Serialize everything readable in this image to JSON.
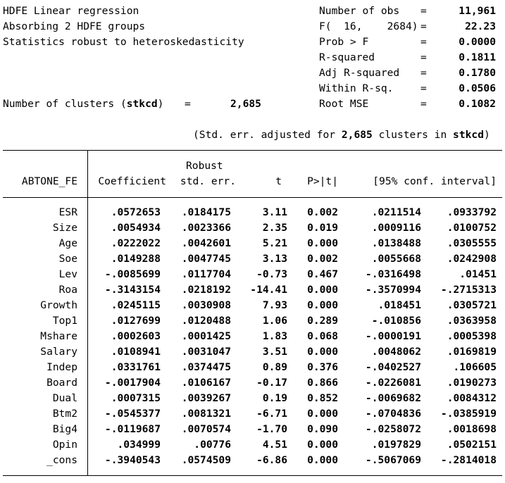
{
  "header": {
    "title": "HDFE Linear regression",
    "absorb": "Absorbing 2 HDFE groups",
    "robust": "Statistics robust to heteroskedasticity",
    "clusters_label_pre": "Number of clusters ",
    "cluster_var": "stkcd",
    "eq": "=",
    "clusters_value": "2,685"
  },
  "stats": [
    {
      "label": "Number of obs",
      "value": "11,961"
    },
    {
      "label": "F(  16,    2684)",
      "value": "22.23"
    },
    {
      "label": "Prob > F",
      "value": "0.0000"
    },
    {
      "label": "R-squared",
      "value": "0.1811"
    },
    {
      "label": "Adj R-squared",
      "value": "0.1780"
    },
    {
      "label": "Within R-sq.",
      "value": "0.0506"
    },
    {
      "label": "Root MSE",
      "value": "0.1082"
    }
  ],
  "note": {
    "pre": "(Std. err. adjusted for ",
    "count": "2,685",
    "mid": " clusters in ",
    "var": "stkcd",
    "post": ")"
  },
  "table": {
    "depvar": "ABTONE_FE",
    "headers": {
      "robust": "Robust",
      "coef": "Coefficient",
      "se": "std. err.",
      "t": "t",
      "p": "P>|t|",
      "ci": "[95% conf. interval]"
    },
    "rows": [
      {
        "var": "ESR",
        "coef": ".0572653",
        "se": ".0184175",
        "t": "3.11",
        "p": "0.002",
        "lo": ".0211514",
        "hi": ".0933792"
      },
      {
        "var": "Size",
        "coef": ".0054934",
        "se": ".0023366",
        "t": "2.35",
        "p": "0.019",
        "lo": ".0009116",
        "hi": ".0100752"
      },
      {
        "var": "Age",
        "coef": ".0222022",
        "se": ".0042601",
        "t": "5.21",
        "p": "0.000",
        "lo": ".0138488",
        "hi": ".0305555"
      },
      {
        "var": "Soe",
        "coef": ".0149288",
        "se": ".0047745",
        "t": "3.13",
        "p": "0.002",
        "lo": ".0055668",
        "hi": ".0242908"
      },
      {
        "var": "Lev",
        "coef": "-.0085699",
        "se": ".0117704",
        "t": "-0.73",
        "p": "0.467",
        "lo": "-.0316498",
        "hi": ".01451"
      },
      {
        "var": "Roa",
        "coef": "-.3143154",
        "se": ".0218192",
        "t": "-14.41",
        "p": "0.000",
        "lo": "-.3570994",
        "hi": "-.2715313"
      },
      {
        "var": "Growth",
        "coef": ".0245115",
        "se": ".0030908",
        "t": "7.93",
        "p": "0.000",
        "lo": ".018451",
        "hi": ".0305721"
      },
      {
        "var": "Top1",
        "coef": ".0127699",
        "se": ".0120488",
        "t": "1.06",
        "p": "0.289",
        "lo": "-.010856",
        "hi": ".0363958"
      },
      {
        "var": "Mshare",
        "coef": ".0002603",
        "se": ".0001425",
        "t": "1.83",
        "p": "0.068",
        "lo": "-.0000191",
        "hi": ".0005398"
      },
      {
        "var": "Salary",
        "coef": ".0108941",
        "se": ".0031047",
        "t": "3.51",
        "p": "0.000",
        "lo": ".0048062",
        "hi": ".0169819"
      },
      {
        "var": "Indep",
        "coef": ".0331761",
        "se": ".0374475",
        "t": "0.89",
        "p": "0.376",
        "lo": "-.0402527",
        "hi": ".106605"
      },
      {
        "var": "Board",
        "coef": "-.0017904",
        "se": ".0106167",
        "t": "-0.17",
        "p": "0.866",
        "lo": "-.0226081",
        "hi": ".0190273"
      },
      {
        "var": "Dual",
        "coef": ".0007315",
        "se": ".0039267",
        "t": "0.19",
        "p": "0.852",
        "lo": "-.0069682",
        "hi": ".0084312"
      },
      {
        "var": "Btm2",
        "coef": "-.0545377",
        "se": ".0081321",
        "t": "-6.71",
        "p": "0.000",
        "lo": "-.0704836",
        "hi": "-.0385919"
      },
      {
        "var": "Big4",
        "coef": "-.0119687",
        "se": ".0070574",
        "t": "-1.70",
        "p": "0.090",
        "lo": "-.0258072",
        "hi": ".0018698"
      },
      {
        "var": "Opin",
        "coef": ".034999",
        "se": ".00776",
        "t": "4.51",
        "p": "0.000",
        "lo": ".0197829",
        "hi": ".0502151"
      },
      {
        "var": "_cons",
        "coef": "-.3940543",
        "se": ".0574509",
        "t": "-6.86",
        "p": "0.000",
        "lo": "-.5067069",
        "hi": "-.2814018"
      }
    ]
  }
}
